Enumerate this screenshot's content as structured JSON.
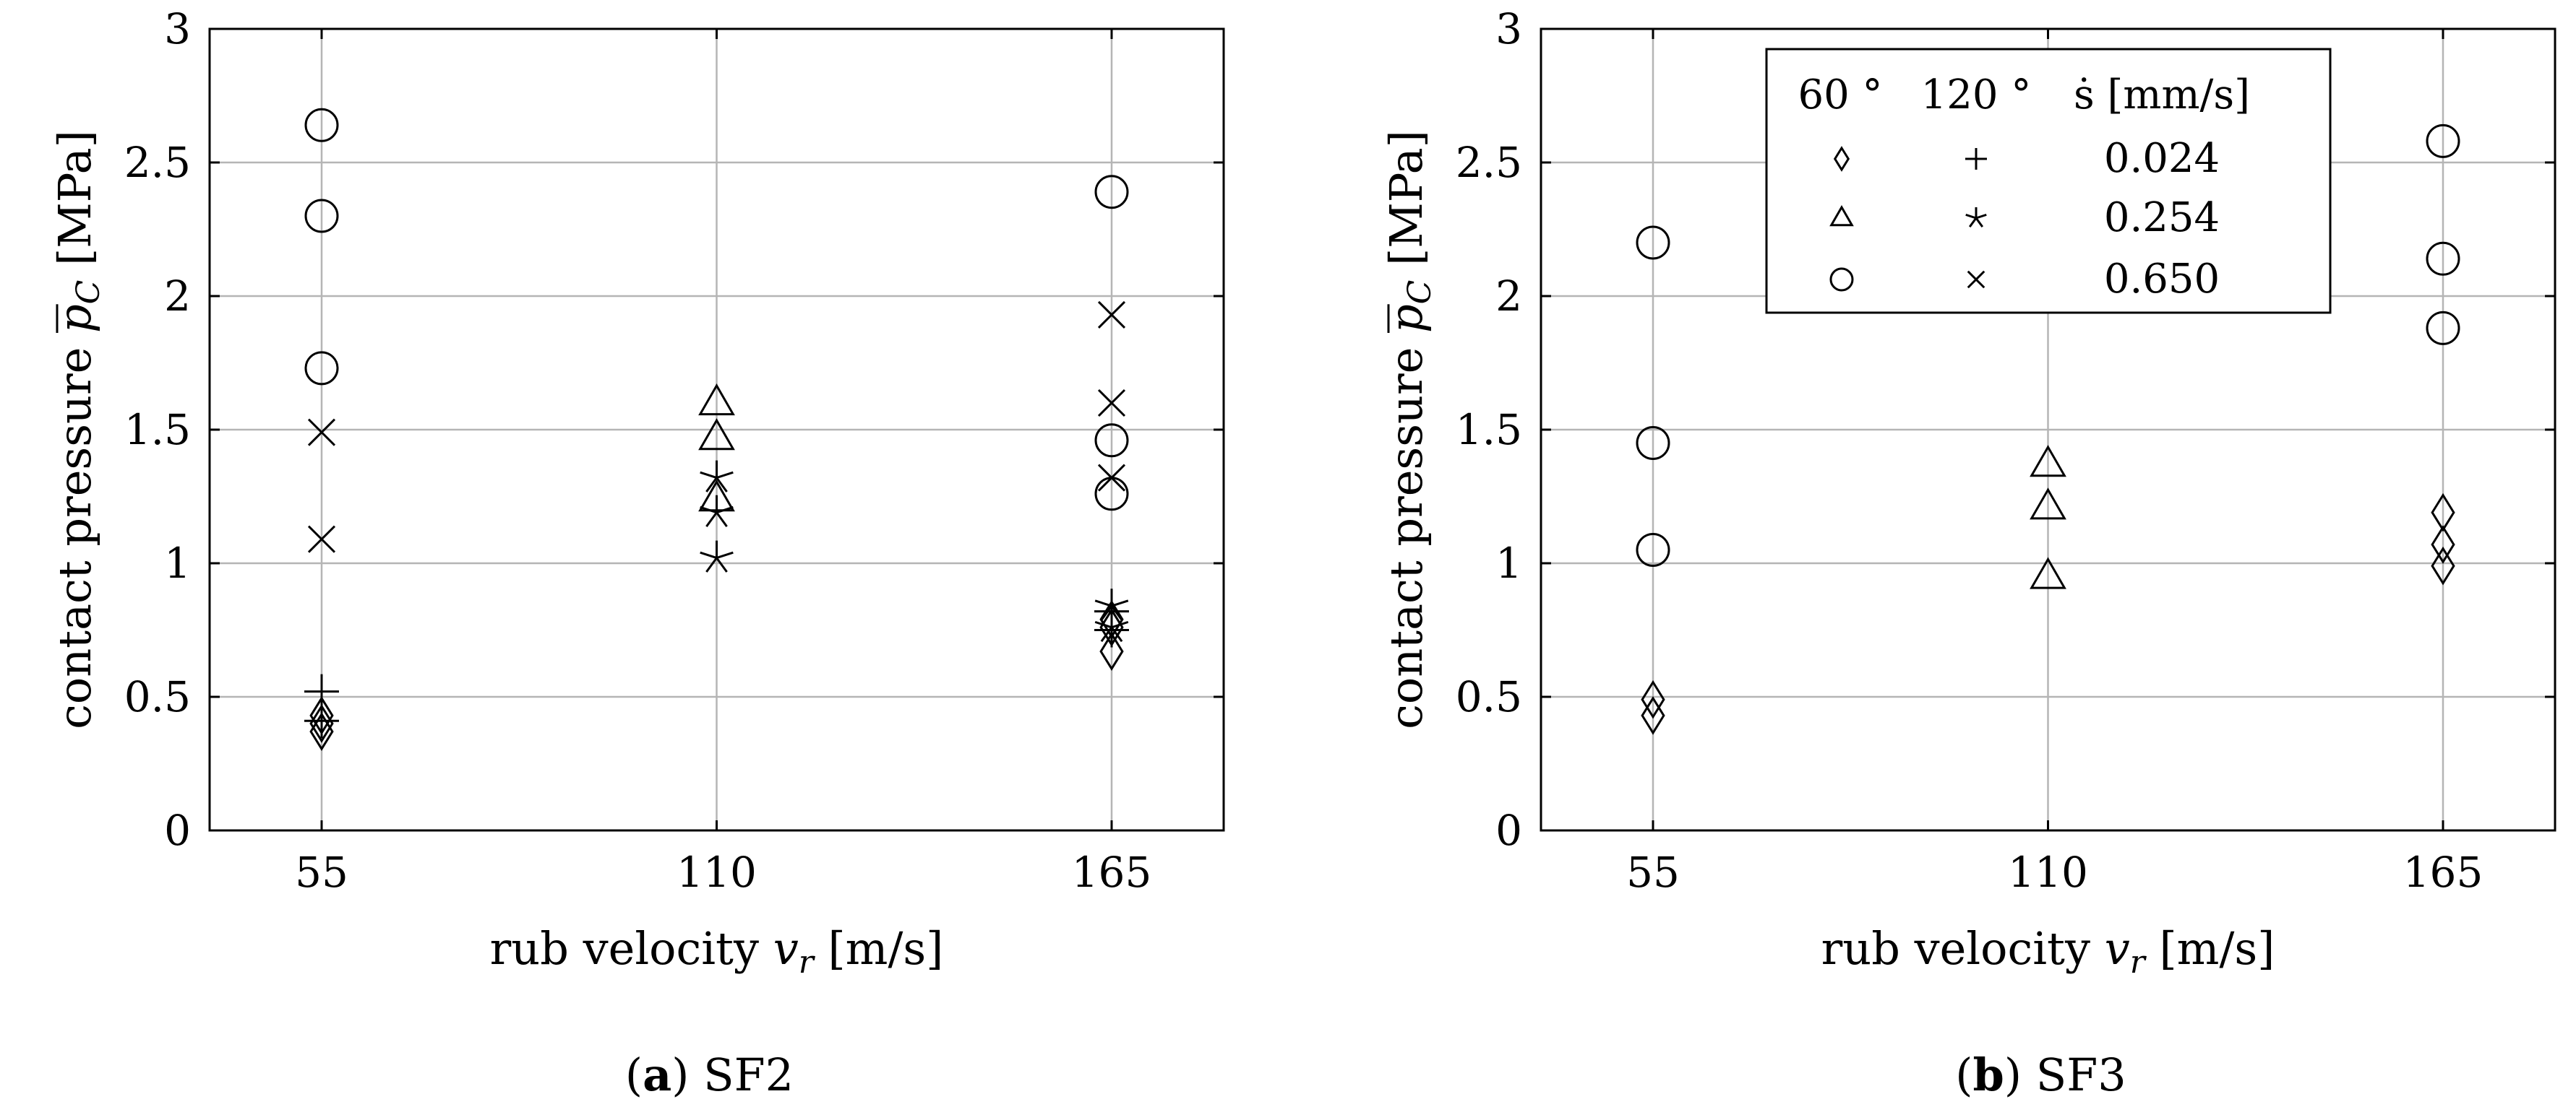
{
  "chart_data": [
    {
      "type": "scatter",
      "caption_label": "a",
      "caption_text": "SF2",
      "xlabel_text": "rub velocity ",
      "xlabel_var": "v",
      "xlabel_sub": "r",
      "xlabel_unit": " [m/s]",
      "ylabel_text": "contact pressure ",
      "ylabel_var": "p",
      "ylabel_sub": "C",
      "ylabel_unit": " [MPa]",
      "x_categories": [
        "55",
        "110",
        "165"
      ],
      "ylim": [
        0,
        3
      ],
      "yticks": [
        "0",
        "0.5",
        "1",
        "1.5",
        "2",
        "2.5",
        "3"
      ],
      "grid": true,
      "series": [
        {
          "name": "60° 0.024",
          "marker": "diamond",
          "points": [
            [
              55,
              0.37
            ],
            [
              55,
              0.4
            ],
            [
              55,
              0.43
            ],
            [
              165,
              0.67
            ],
            [
              165,
              0.76
            ],
            [
              165,
              0.79
            ]
          ]
        },
        {
          "name": "120° 0.024",
          "marker": "plus",
          "points": [
            [
              55,
              0.41
            ],
            [
              55,
              0.52
            ],
            [
              165,
              0.75
            ],
            [
              165,
              0.82
            ]
          ]
        },
        {
          "name": "60° 0.254",
          "marker": "triangle",
          "points": [
            [
              110,
              1.24
            ],
            [
              110,
              1.47
            ],
            [
              110,
              1.6
            ]
          ]
        },
        {
          "name": "120° 0.254",
          "marker": "star",
          "points": [
            [
              110,
              1.02
            ],
            [
              110,
              1.19
            ],
            [
              110,
              1.32
            ],
            [
              165,
              0.76
            ],
            [
              165,
              0.84
            ]
          ]
        },
        {
          "name": "60° 0.650",
          "marker": "circle",
          "points": [
            [
              55,
              1.73
            ],
            [
              55,
              2.3
            ],
            [
              55,
              2.64
            ],
            [
              165,
              1.26
            ],
            [
              165,
              1.46
            ],
            [
              165,
              2.39
            ]
          ]
        },
        {
          "name": "120° 0.650",
          "marker": "cross",
          "points": [
            [
              55,
              1.09
            ],
            [
              55,
              1.49
            ],
            [
              165,
              1.32
            ],
            [
              165,
              1.6
            ],
            [
              165,
              1.93
            ]
          ]
        }
      ]
    },
    {
      "type": "scatter",
      "caption_label": "b",
      "caption_text": "SF3",
      "xlabel_text": "rub velocity ",
      "xlabel_var": "v",
      "xlabel_sub": "r",
      "xlabel_unit": " [m/s]",
      "ylabel_text": "contact pressure ",
      "ylabel_var": "p",
      "ylabel_sub": "C",
      "ylabel_unit": " [MPa]",
      "x_categories": [
        "55",
        "110",
        "165"
      ],
      "ylim": [
        0,
        3
      ],
      "yticks": [
        "0",
        "0.5",
        "1",
        "1.5",
        "2",
        "2.5",
        "3"
      ],
      "grid": true,
      "legend": {
        "position": "top-center",
        "header": [
          "60 °",
          "120 °",
          "ṡ [mm/s]"
        ],
        "rows": [
          {
            "m60": "diamond",
            "m120": "plus",
            "value": "0.024"
          },
          {
            "m60": "triangle",
            "m120": "star",
            "value": "0.254"
          },
          {
            "m60": "circle",
            "m120": "cross",
            "value": "0.650"
          }
        ]
      },
      "series": [
        {
          "name": "60° 0.024",
          "marker": "diamond",
          "points": [
            [
              55,
              0.43
            ],
            [
              55,
              0.49
            ],
            [
              165,
              0.99
            ],
            [
              165,
              1.07
            ],
            [
              165,
              1.19
            ]
          ]
        },
        {
          "name": "60° 0.254",
          "marker": "triangle",
          "points": [
            [
              110,
              0.95
            ],
            [
              110,
              1.21
            ],
            [
              110,
              1.37
            ]
          ]
        },
        {
          "name": "60° 0.650",
          "marker": "circle",
          "points": [
            [
              55,
              1.05
            ],
            [
              55,
              1.45
            ],
            [
              55,
              2.2
            ],
            [
              165,
              1.88
            ],
            [
              165,
              2.14
            ],
            [
              165,
              2.58
            ]
          ]
        }
      ]
    }
  ]
}
